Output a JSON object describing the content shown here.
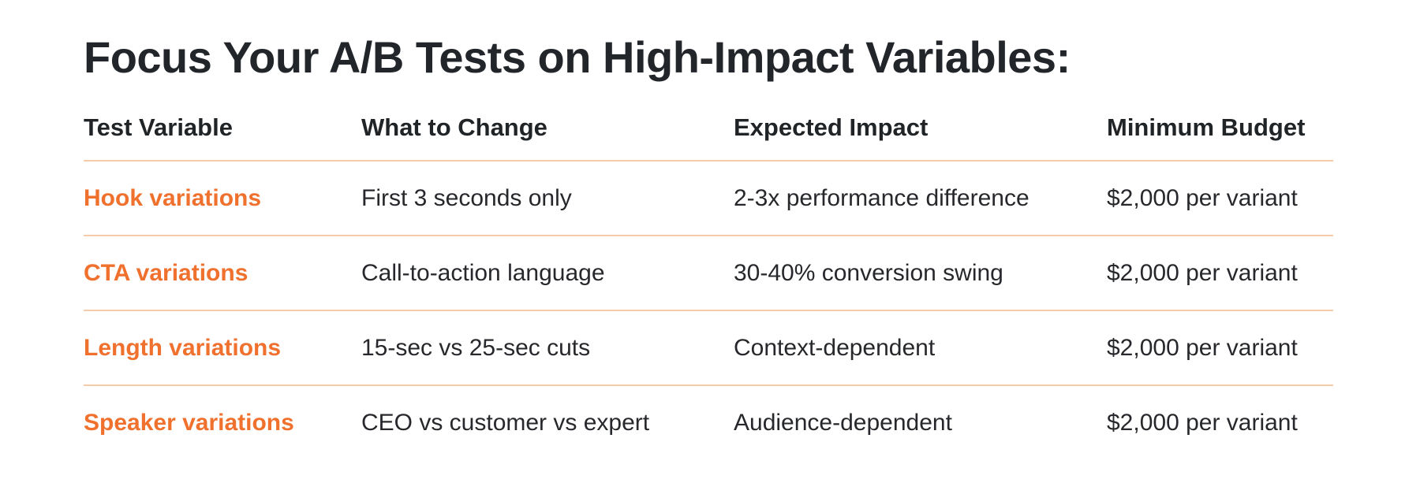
{
  "page": {
    "title": "Focus Your A/B Tests on High-Impact Variables:"
  },
  "table": {
    "columns": [
      "Test Variable",
      "What to Change",
      "Expected Impact",
      "Minimum Budget"
    ],
    "rows": [
      [
        "Hook variations",
        "First 3 seconds only",
        "2-3x performance difference",
        "$2,000 per variant"
      ],
      [
        "CTA variations",
        "Call-to-action language",
        "30-40% conversion swing",
        "$2,000 per variant"
      ],
      [
        "Length variations",
        "15-sec vs 25-sec cuts",
        "Context-dependent",
        "$2,000 per variant"
      ],
      [
        "Speaker variations",
        "CEO vs customer vs expert",
        "Audience-dependent",
        "$2,000 per variant"
      ]
    ],
    "colors": {
      "accent": "#F0702D",
      "divider": "#F4CCA9",
      "heading_text": "#212427",
      "body_text": "#26282B"
    }
  }
}
